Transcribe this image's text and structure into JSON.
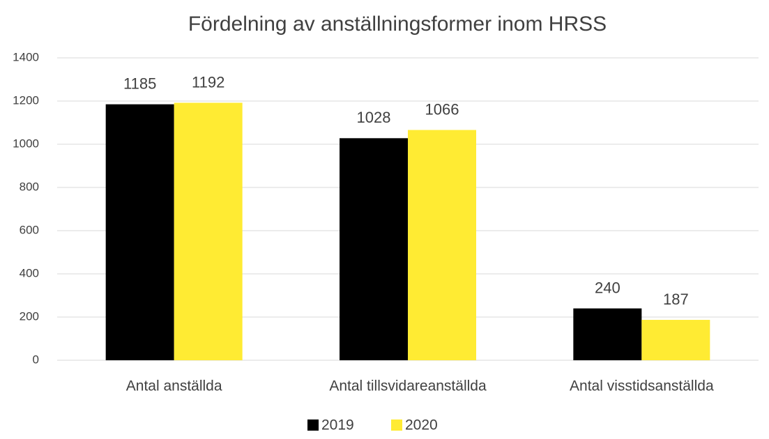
{
  "chart_data": {
    "type": "bar",
    "title": "Fördelning av anställningsformer inom HRSS",
    "categories": [
      "Antal anställda",
      "Antal tillsvidareanställda",
      "Antal visstidsanställda"
    ],
    "series": [
      {
        "name": "2019",
        "color": "#000000",
        "values": [
          1185,
          1028,
          240
        ]
      },
      {
        "name": "2020",
        "color": "#ffeb33",
        "values": [
          1192,
          1066,
          187
        ]
      }
    ],
    "ylim": [
      0,
      1400
    ],
    "yticks": [
      0,
      200,
      400,
      600,
      800,
      1000,
      1200,
      1400
    ],
    "grid": true,
    "legend": "bottom"
  }
}
